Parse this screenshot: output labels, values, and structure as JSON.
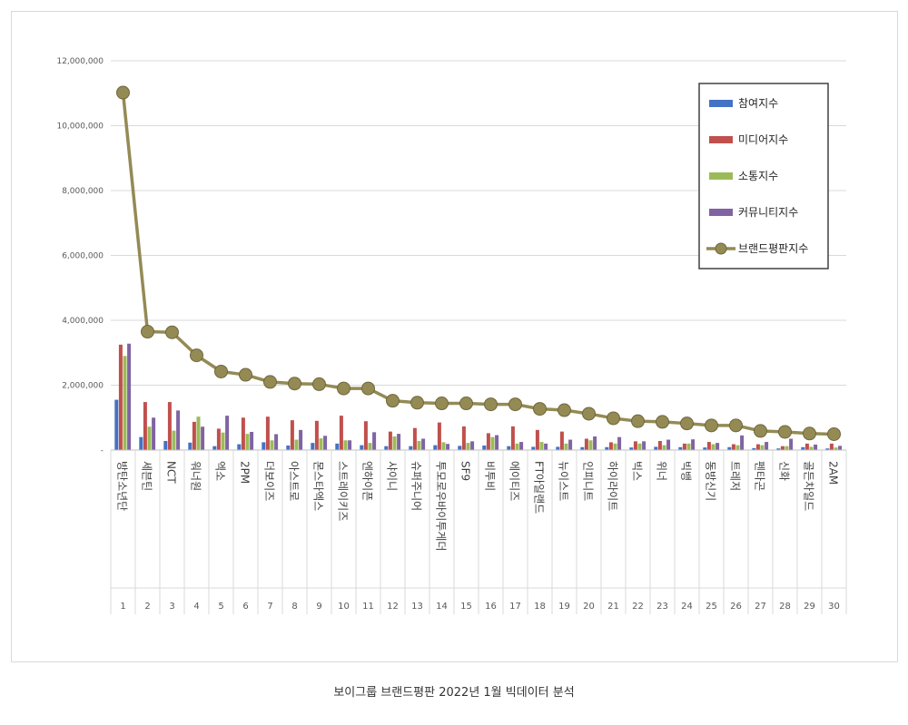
{
  "caption": "보이그룹 브랜드평판 2022년 1월 빅데이터 분석",
  "chart_data": {
    "type": "bar",
    "title": "",
    "xlabel": "",
    "ylabel": "",
    "ylim": [
      0,
      12000000
    ],
    "yticks": [
      0,
      2000000,
      4000000,
      6000000,
      8000000,
      10000000,
      12000000
    ],
    "ytick_labels": [
      "-",
      "2,000,000",
      "4,000,000",
      "6,000,000",
      "8,000,000",
      "10,000,000",
      "12,000,000"
    ],
    "grid": true,
    "legend_position": "top-right",
    "ranks": [
      "1",
      "2",
      "3",
      "4",
      "5",
      "6",
      "7",
      "8",
      "9",
      "10",
      "11",
      "12",
      "13",
      "14",
      "15",
      "16",
      "17",
      "18",
      "19",
      "20",
      "21",
      "22",
      "23",
      "24",
      "25",
      "26",
      "27",
      "28",
      "29",
      "30"
    ],
    "categories": [
      "방탄소년단",
      "세븐틴",
      "NCT",
      "워너원",
      "엑소",
      "2PM",
      "더보이즈",
      "아스트로",
      "몬스타엑스",
      "스트레이키즈",
      "엔하이픈",
      "샤이니",
      "슈퍼주니어",
      "투모로우바이투게더",
      "SF9",
      "비투비",
      "에이티즈",
      "FT아일랜드",
      "뉴이스트",
      "인피니트",
      "하이라이트",
      "빅스",
      "위너",
      "빅뱅",
      "동방신기",
      "트레저",
      "펜타곤",
      "신화",
      "골든차일드",
      "2AM"
    ],
    "series": [
      {
        "name": "참여지수",
        "kind": "bar",
        "color": "#4472c4",
        "values": [
          1550000,
          400000,
          280000,
          230000,
          120000,
          180000,
          240000,
          140000,
          220000,
          200000,
          150000,
          120000,
          120000,
          150000,
          130000,
          140000,
          120000,
          100000,
          100000,
          90000,
          90000,
          80000,
          100000,
          90000,
          80000,
          90000,
          60000,
          50000,
          90000,
          50000
        ]
      },
      {
        "name": "미디어지수",
        "kind": "bar",
        "color": "#c0504d",
        "values": [
          3250000,
          1480000,
          1480000,
          870000,
          660000,
          1000000,
          1030000,
          920000,
          900000,
          1060000,
          890000,
          570000,
          680000,
          850000,
          730000,
          520000,
          730000,
          620000,
          570000,
          350000,
          240000,
          270000,
          280000,
          200000,
          250000,
          180000,
          180000,
          120000,
          200000,
          200000
        ]
      },
      {
        "name": "소통지수",
        "kind": "bar",
        "color": "#9bbb59",
        "values": [
          2900000,
          720000,
          600000,
          1030000,
          540000,
          500000,
          300000,
          320000,
          360000,
          300000,
          220000,
          420000,
          280000,
          240000,
          220000,
          400000,
          200000,
          250000,
          200000,
          300000,
          200000,
          200000,
          150000,
          200000,
          180000,
          150000,
          150000,
          120000,
          100000,
          80000
        ]
      },
      {
        "name": "커뮤니티지수",
        "kind": "bar",
        "color": "#8064a2",
        "values": [
          3280000,
          1000000,
          1220000,
          720000,
          1060000,
          560000,
          490000,
          620000,
          440000,
          300000,
          550000,
          500000,
          350000,
          190000,
          270000,
          460000,
          250000,
          200000,
          320000,
          420000,
          400000,
          270000,
          320000,
          330000,
          220000,
          450000,
          250000,
          350000,
          170000,
          130000
        ]
      },
      {
        "name": "브랜드평판지수",
        "kind": "line",
        "color": "#948a54",
        "values": [
          11020000,
          3650000,
          3630000,
          2920000,
          2420000,
          2320000,
          2100000,
          2050000,
          2030000,
          1900000,
          1900000,
          1520000,
          1460000,
          1440000,
          1440000,
          1410000,
          1410000,
          1270000,
          1230000,
          1120000,
          980000,
          890000,
          870000,
          820000,
          760000,
          760000,
          590000,
          560000,
          510000,
          490000
        ]
      }
    ]
  }
}
